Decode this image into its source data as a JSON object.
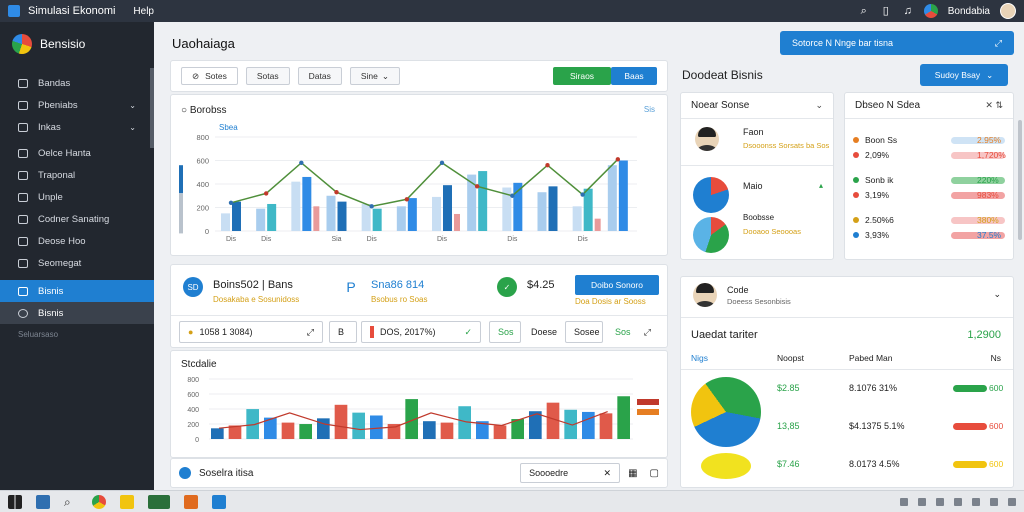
{
  "titlebar": {
    "app_title": "Simulasi Ekonomi",
    "menu": "Help",
    "user": "Bondabia"
  },
  "sidebar": {
    "brand": "Bensisio",
    "items": [
      {
        "label": "Bandas",
        "chev": ""
      },
      {
        "label": "Pbeniabs",
        "chev": "⌄"
      },
      {
        "label": "Inkas",
        "chev": "⌄"
      },
      {
        "label": "Oelce Hanta",
        "chev": ""
      },
      {
        "label": "Traponal",
        "chev": ""
      },
      {
        "label": "Unple",
        "chev": ""
      },
      {
        "label": "Codner Sanating",
        "chev": ""
      },
      {
        "label": "Deose Hoo",
        "chev": ""
      },
      {
        "label": "Seomegat",
        "chev": ""
      },
      {
        "label": "Bisnis",
        "chev": ""
      },
      {
        "label": "Bisnis",
        "chev": ""
      }
    ],
    "footer": "Seluarsaso"
  },
  "header": {
    "title": "Uaohaiaga",
    "banner": "Sotorce N Nnge bar tisna"
  },
  "toolbar": {
    "search": "Sotes",
    "btn1": "Sotas",
    "btn2": "Datas",
    "btn3": "Sine",
    "green": "Siraos",
    "blue": "Baas"
  },
  "chart1": {
    "title": "Borobss",
    "sub": "Sbea",
    "right": "Sis"
  },
  "stats": {
    "s1": {
      "icon": "SD",
      "val": "Boins502 | Bans",
      "sub": "Dosakaba e Sosunidoss"
    },
    "s2": {
      "icon": "P",
      "val": "Sna86 814",
      "sub": "Bsobus ro Soas"
    },
    "s3": {
      "icon": "✓",
      "val": "$4.25",
      "sub": "Doa Dosis ar Sooss"
    },
    "blue_btn": "Doibo Sonoro",
    "pill1": "1058 1 3084)",
    "pill2": "B",
    "pill3": "DOS, 2017%)",
    "pill4": "Sos",
    "pill5": "Doese",
    "pill6": "Sosee",
    "pill7": "Sos"
  },
  "chart2": {
    "title": "Stcdalie"
  },
  "bottom": {
    "left": "Soselra itisa",
    "right": "Soooedre"
  },
  "right": {
    "title": "Doodeat Bisnis",
    "button": "Sudoy Bsay",
    "card1": {
      "head": "Noear Sonse",
      "p1_name": "Faon",
      "p1_sub": "Dsooonss Sorsats ba Sos",
      "p2_name": "Maio",
      "p2_sub": "Boobsse",
      "p2_sub2": "Dooaoo Seoooas"
    },
    "card2": {
      "head": "Dbseo N Sdea",
      "rows": [
        {
          "label": "Boon Ss",
          "pct": "2.95%"
        },
        {
          "label": "2,09%",
          "pct": "1,720%"
        },
        {
          "label": "Sonb ik",
          "pct": "220%"
        },
        {
          "label": "3,19%",
          "pct": "983%"
        },
        {
          "label": "2.50%6",
          "pct": "380%"
        },
        {
          "label": "3,93%",
          "pct": "37.5%"
        }
      ]
    },
    "card3": {
      "head": "Code",
      "head_sub": "Doeess Sesonbisis",
      "title": "Uaedat tariter",
      "total": "1,2900",
      "cols": [
        "Nigs",
        "Noopst",
        "Pabed Man",
        "Ns"
      ],
      "rows": [
        {
          "a": "$2.85",
          "b": "8.1076 31%",
          "c": "600"
        },
        {
          "a": "13,85",
          "b": "$4.1375 5.1%",
          "c": "600"
        },
        {
          "a": "$7.46",
          "b": "8.0173 4.5%",
          "c": "600"
        }
      ]
    }
  },
  "chart_data": {
    "type": "bar",
    "categories": [
      "Dis",
      "Dis",
      "",
      "Sia",
      "Dis",
      "",
      "Dis",
      "",
      "Dis",
      "",
      "Dis",
      ""
    ],
    "series": [
      {
        "values": [
          150,
          190,
          420,
          300,
          230,
          210,
          290,
          480,
          370,
          330,
          210,
          560
        ]
      },
      {
        "values": [
          250,
          230,
          460,
          250,
          190,
          280,
          390,
          510,
          410,
          380,
          360,
          600
        ]
      }
    ],
    "line": [
      240,
      320,
      580,
      330,
      210,
      270,
      580,
      380,
      300,
      560,
      310,
      610
    ],
    "ylim": [
      0,
      800
    ],
    "yticks": [
      "0",
      "200",
      "400",
      "600",
      "800"
    ]
  }
}
